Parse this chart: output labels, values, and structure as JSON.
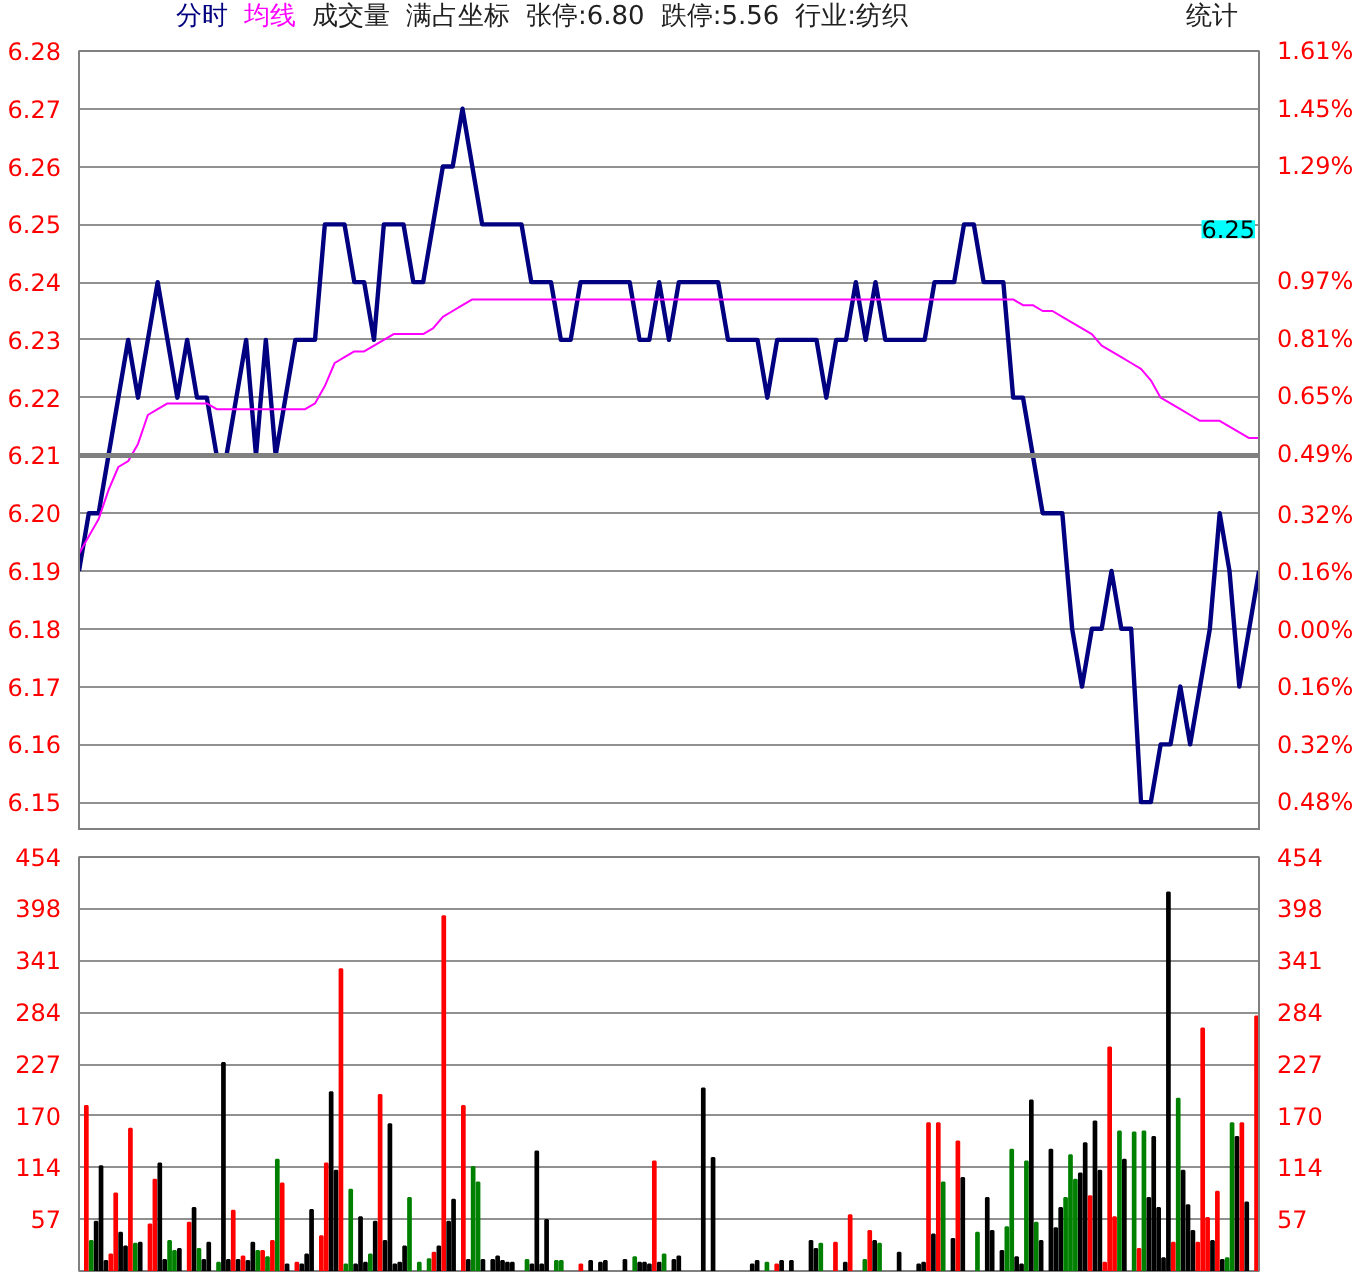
{
  "chart_data": [
    {
      "type": "line",
      "grid": "y",
      "tick_labels": "y",
      "annotations": [
        "成交量",
        "满占坐标",
        "张停:6.80",
        "跌停:5.56",
        "行业:纺织",
        "统计",
        "6.25"
      ],
      "ylim": [
        6.145,
        6.28
      ],
      "yticks": [
        6.15,
        6.16,
        6.17,
        6.18,
        6.19,
        {
          "value": 6.2,
          "label": "6.20"
        },
        6.21,
        6.22,
        6.23,
        6.24,
        6.25,
        6.26,
        6.27,
        6.28
      ],
      "y2lim": [
        -0.56,
        1.61
      ],
      "y2ticks": [
        {
          "value": -0.48,
          "label": "0.48%"
        },
        {
          "value": -0.32,
          "label": "0.32%"
        },
        {
          "value": -0.16,
          "label": "0.16%"
        },
        {
          "value": 0,
          "label": "0.00%"
        },
        {
          "value": 0.16,
          "label": "0.16%"
        },
        {
          "value": 0.32,
          "label": "0.32%"
        },
        {
          "value": 0.49,
          "label": "0.49%"
        },
        {
          "value": 0.65,
          "label": "0.65%"
        },
        {
          "value": 0.81,
          "label": "0.81%"
        },
        {
          "value": 0.97,
          "label": "0.97%"
        },
        {
          "value": 1.29,
          "label": "1.29%"
        },
        {
          "value": 1.45,
          "label": "1.45%"
        },
        {
          "value": 1.61,
          "label": "1.61%"
        }
      ],
      "ref_lines": [
        {
          "axis": "y",
          "value": 6.21,
          "color": "#808080"
        }
      ],
      "categories": [
        null,
        null,
        null,
        null,
        null,
        null,
        null,
        null,
        null,
        null,
        null,
        null,
        null,
        null,
        null,
        null,
        null,
        null,
        null,
        null,
        null,
        null,
        null,
        null,
        null,
        null,
        null,
        null,
        null,
        null,
        null,
        null,
        null,
        null,
        null,
        null,
        null,
        null,
        null,
        null,
        null,
        null,
        null,
        null,
        null,
        null,
        null,
        null,
        null,
        null,
        null,
        null,
        null,
        null,
        null,
        null,
        null,
        null,
        null,
        null,
        null,
        null,
        null,
        null,
        null,
        null,
        null,
        null,
        null,
        null,
        null,
        null,
        null,
        null,
        null,
        null,
        null,
        null,
        null,
        null,
        null,
        null,
        null,
        null,
        null,
        null,
        null,
        null,
        null,
        null,
        null,
        null,
        null,
        null,
        null,
        null,
        null,
        null,
        null,
        null,
        null,
        null,
        null,
        null,
        null,
        null,
        null,
        null,
        null,
        null,
        null,
        null,
        null,
        null,
        null,
        null,
        null,
        null,
        null,
        null,
        null
      ],
      "series": [
        {
          "name": "分时",
          "color": "#000080",
          "values": [
            6.19,
            6.2,
            6.2,
            6.21,
            6.22,
            6.23,
            6.22,
            6.23,
            6.24,
            6.23,
            6.22,
            6.23,
            6.22,
            6.22,
            6.21,
            6.21,
            6.22,
            6.23,
            6.21,
            6.23,
            6.21,
            6.22,
            6.23,
            6.23,
            6.23,
            6.25,
            6.25,
            6.25,
            6.24,
            6.24,
            6.23,
            6.25,
            6.25,
            6.25,
            6.24,
            6.24,
            6.25,
            6.26,
            6.26,
            6.27,
            6.26,
            6.25,
            6.25,
            6.25,
            6.25,
            6.25,
            6.24,
            6.24,
            6.24,
            6.23,
            6.23,
            6.24,
            6.24,
            6.24,
            6.24,
            6.24,
            6.24,
            6.23,
            6.23,
            6.24,
            6.23,
            6.24,
            6.24,
            6.24,
            6.24,
            6.24,
            6.23,
            6.23,
            6.23,
            6.23,
            6.22,
            6.23,
            6.23,
            6.23,
            6.23,
            6.23,
            6.22,
            6.23,
            6.23,
            6.24,
            6.23,
            6.24,
            6.23,
            6.23,
            6.23,
            6.23,
            6.23,
            6.24,
            6.24,
            6.24,
            6.25,
            6.25,
            6.24,
            6.24,
            6.24,
            6.22,
            6.22,
            6.21,
            6.2,
            6.2,
            6.2,
            6.18,
            6.17,
            6.18,
            6.18,
            6.19,
            6.18,
            6.18,
            6.15,
            6.15,
            6.16,
            6.16,
            6.17,
            6.16,
            6.17,
            6.18,
            6.2,
            6.19,
            6.17,
            6.18,
            6.19
          ]
        },
        {
          "name": "均线",
          "color": "#ff00ff",
          "values": [
            6.193,
            6.196,
            6.199,
            6.204,
            6.208,
            6.209,
            6.212,
            6.217,
            6.218,
            6.219,
            6.219,
            6.219,
            6.219,
            6.219,
            6.218,
            6.218,
            6.218,
            6.218,
            6.218,
            6.218,
            6.218,
            6.218,
            6.218,
            6.218,
            6.219,
            6.222,
            6.226,
            6.227,
            6.228,
            6.228,
            6.229,
            6.23,
            6.231,
            6.231,
            6.231,
            6.231,
            6.232,
            6.234,
            6.235,
            6.236,
            6.237,
            6.237,
            6.237,
            6.237,
            6.237,
            6.237,
            6.237,
            6.237,
            6.237,
            6.237,
            6.237,
            6.237,
            6.237,
            6.237,
            6.237,
            6.237,
            6.237,
            6.237,
            6.237,
            6.237,
            6.237,
            6.237,
            6.237,
            6.237,
            6.237,
            6.237,
            6.237,
            6.237,
            6.237,
            6.237,
            6.237,
            6.237,
            6.237,
            6.237,
            6.237,
            6.237,
            6.237,
            6.237,
            6.237,
            6.237,
            6.237,
            6.237,
            6.237,
            6.237,
            6.237,
            6.237,
            6.237,
            6.237,
            6.237,
            6.237,
            6.237,
            6.237,
            6.237,
            6.237,
            6.237,
            6.237,
            6.236,
            6.236,
            6.235,
            6.235,
            6.234,
            6.233,
            6.232,
            6.231,
            6.229,
            6.228,
            6.227,
            6.226,
            6.225,
            6.223,
            6.22,
            6.219,
            6.218,
            6.217,
            6.216,
            6.216,
            6.216,
            6.215,
            6.214,
            6.213,
            6.213
          ]
        }
      ]
    },
    {
      "type": "bar",
      "grid": "y",
      "tick_labels": "y",
      "ylim": [
        0,
        454
      ],
      "yticks": [
        57,
        114,
        170,
        227,
        284,
        341,
        398,
        454
      ],
      "y2lim": [
        0,
        454
      ],
      "y2ticks": [
        57,
        114,
        170,
        227,
        284,
        341,
        398,
        454
      ],
      "categories": [
        null,
        null,
        null,
        null,
        null,
        null,
        null,
        null,
        null,
        null,
        null,
        null,
        null,
        null,
        null,
        null,
        null,
        null,
        null,
        null,
        null,
        null,
        null,
        null,
        null,
        null,
        null,
        null,
        null,
        null,
        null,
        null,
        null,
        null,
        null,
        null,
        null,
        null,
        null,
        null,
        null,
        null,
        null,
        null,
        null,
        null,
        null,
        null,
        null,
        null,
        null,
        null,
        null,
        null,
        null,
        null,
        null,
        null,
        null,
        null,
        null,
        null,
        null,
        null,
        null,
        null,
        null,
        null,
        null,
        null,
        null,
        null,
        null,
        null,
        null,
        null,
        null,
        null,
        null,
        null,
        null,
        null,
        null,
        null,
        null,
        null,
        null,
        null,
        null,
        null,
        null,
        null,
        null,
        null,
        null,
        null,
        null,
        null,
        null,
        null,
        null,
        null,
        null,
        null,
        null,
        null,
        null,
        null,
        null,
        null,
        null,
        null,
        null,
        null,
        null,
        null,
        null,
        null,
        null,
        null,
        null,
        null,
        null,
        null,
        null,
        null,
        null,
        null,
        null,
        null,
        null,
        null,
        null,
        null,
        null,
        null,
        null,
        null,
        null,
        null,
        null,
        null,
        null,
        null,
        null,
        null,
        null,
        null,
        null,
        null,
        null,
        null,
        null,
        null,
        null,
        null,
        null,
        null,
        null,
        null,
        null,
        null,
        null,
        null,
        null,
        null,
        null,
        null,
        null,
        null,
        null,
        null,
        null,
        null,
        null,
        null,
        null,
        null,
        null,
        null,
        null,
        null,
        null,
        null,
        null,
        null,
        null,
        null,
        null,
        null,
        null,
        null,
        null,
        null,
        null,
        null,
        null,
        null,
        null,
        null,
        null,
        null,
        null,
        null,
        null,
        null,
        null,
        null,
        null,
        null,
        null,
        null,
        null,
        null,
        null,
        null,
        null,
        null,
        null,
        null,
        null,
        null,
        null,
        null,
        null,
        null,
        null,
        null,
        null,
        null,
        null,
        null,
        null,
        null,
        null,
        null,
        null,
        null,
        null,
        null,
        null
      ],
      "values": [
        null,
        181,
        33,
        54,
        115,
        11,
        18,
        85,
        42,
        27,
        156,
        30,
        31,
        null,
        51,
        100,
        118,
        12,
        33,
        22,
        24,
        null,
        53,
        69,
        24,
        12,
        31,
        null,
        9,
        228,
        12,
        66,
        12,
        16,
        11,
        31,
        22,
        22,
        15,
        33,
        122,
        96,
        7,
        null,
        9,
        7,
        18,
        67,
        null,
        38,
        118,
        196,
        110,
        331,
        7,
        89,
        7,
        59,
        9,
        18,
        54,
        193,
        33,
        161,
        7,
        9,
        27,
        80,
        null,
        9,
        null,
        13,
        20,
        27,
        389,
        54,
        78,
        null,
        181,
        12,
        114,
        97,
        12,
        null,
        12,
        16,
        11,
        9,
        9,
        null,
        null,
        12,
        7,
        131,
        7,
        56,
        null,
        11,
        11,
        null,
        null,
        null,
        7,
        null,
        11,
        null,
        9,
        11,
        null,
        null,
        null,
        12,
        null,
        15,
        9,
        9,
        7,
        120,
        9,
        18,
        null,
        12,
        16,
        null,
        null,
        null,
        null,
        200,
        null,
        124,
        null,
        null,
        null,
        null,
        null,
        null,
        null,
        7,
        11,
        null,
        9,
        null,
        7,
        11,
        null,
        11,
        null,
        null,
        null,
        33,
        24,
        30,
        null,
        null,
        31,
        null,
        9,
        61,
        null,
        null,
        12,
        44,
        33,
        30,
        null,
        null,
        null,
        20,
        null,
        null,
        null,
        7,
        9,
        162,
        40,
        162,
        97,
        null,
        35,
        142,
        102,
        null,
        null,
        42,
        null,
        80,
        44,
        null,
        22,
        48,
        133,
        15,
        7,
        120,
        187,
        53,
        33,
        null,
        133,
        47,
        69,
        80,
        127,
        100,
        107,
        140,
        82,
        164,
        110,
        9,
        245,
        59,
        153,
        122,
        null,
        152,
        24,
        153,
        80,
        147,
        69,
        14,
        415,
        31,
        189,
        110,
        72,
        44,
        31,
        266,
        58,
        33,
        87,
        12,
        14,
        162,
        147,
        162,
        75,
        null,
        279
      ],
      "colors": [
        null,
        "#ff0000",
        "#008000",
        "#000000",
        "#000000",
        "#000000",
        "#ff0000",
        "#ff0000",
        "#000000",
        "#000000",
        "#ff0000",
        "#008000",
        "#000000",
        null,
        "#ff0000",
        "#ff0000",
        "#000000",
        "#000000",
        "#008000",
        "#008000",
        "#000000",
        null,
        "#ff0000",
        "#000000",
        "#008000",
        "#000000",
        "#000000",
        null,
        "#008000",
        "#000000",
        "#000000",
        "#ff0000",
        "#000000",
        "#ff0000",
        "#000000",
        "#000000",
        "#008000",
        "#ff0000",
        "#008000",
        "#ff0000",
        "#008000",
        "#ff0000",
        "#000000",
        null,
        "#ff0000",
        "#000000",
        "#000000",
        "#000000",
        null,
        "#ff0000",
        "#ff0000",
        "#000000",
        "#000000",
        "#ff0000",
        "#008000",
        "#008000",
        "#000000",
        "#000000",
        "#000000",
        "#008000",
        "#000000",
        "#ff0000",
        "#000000",
        "#000000",
        "#000000",
        "#000000",
        "#000000",
        "#008000",
        null,
        "#008000",
        null,
        "#008000",
        "#ff0000",
        "#000000",
        "#ff0000",
        "#000000",
        "#000000",
        null,
        "#ff0000",
        "#000000",
        "#008000",
        "#008000",
        "#000000",
        null,
        "#000000",
        "#000000",
        "#000000",
        "#000000",
        "#000000",
        null,
        null,
        "#008000",
        "#000000",
        "#000000",
        "#000000",
        "#000000",
        null,
        "#008000",
        "#008000",
        null,
        null,
        null,
        "#ff0000",
        null,
        "#000000",
        null,
        "#000000",
        "#000000",
        null,
        null,
        null,
        "#000000",
        null,
        "#008000",
        "#000000",
        "#000000",
        "#000000",
        "#ff0000",
        "#000000",
        "#008000",
        null,
        "#000000",
        "#000000",
        null,
        null,
        null,
        null,
        "#000000",
        null,
        "#000000",
        null,
        null,
        null,
        null,
        null,
        null,
        null,
        "#000000",
        "#000000",
        null,
        "#008000",
        null,
        "#ff0000",
        "#000000",
        null,
        "#000000",
        null,
        null,
        null,
        "#000000",
        "#000000",
        "#008000",
        null,
        null,
        "#ff0000",
        null,
        "#000000",
        "#ff0000",
        null,
        null,
        "#008000",
        "#ff0000",
        "#000000",
        "#008000",
        null,
        null,
        null,
        "#000000",
        null,
        null,
        null,
        "#000000",
        "#000000",
        "#ff0000",
        "#000000",
        "#ff0000",
        "#008000",
        null,
        "#000000",
        "#ff0000",
        "#000000",
        null,
        null,
        "#008000",
        null,
        "#000000",
        "#000000",
        null,
        "#000000",
        "#008000",
        "#008000",
        "#000000",
        "#000000",
        "#008000",
        "#000000",
        "#008000",
        "#000000",
        null,
        "#000000",
        "#000000",
        "#000000",
        "#008000",
        "#008000",
        "#008000",
        "#000000",
        "#000000",
        "#ff0000",
        "#000000",
        "#000000",
        "#ff0000",
        "#ff0000",
        "#ff0000",
        "#008000",
        "#000000",
        null,
        "#008000",
        "#ff0000",
        "#008000",
        "#000000",
        "#000000",
        "#000000",
        "#000000",
        "#000000",
        "#ff0000",
        "#008000",
        "#000000",
        "#000000",
        "#000000",
        "#ff0000",
        "#ff0000",
        "#ff0000",
        "#000000",
        "#ff0000",
        "#000000",
        "#008000",
        "#008000",
        "#000000",
        "#ff0000",
        "#000000",
        null,
        "#ff0000"
      ]
    }
  ]
}
